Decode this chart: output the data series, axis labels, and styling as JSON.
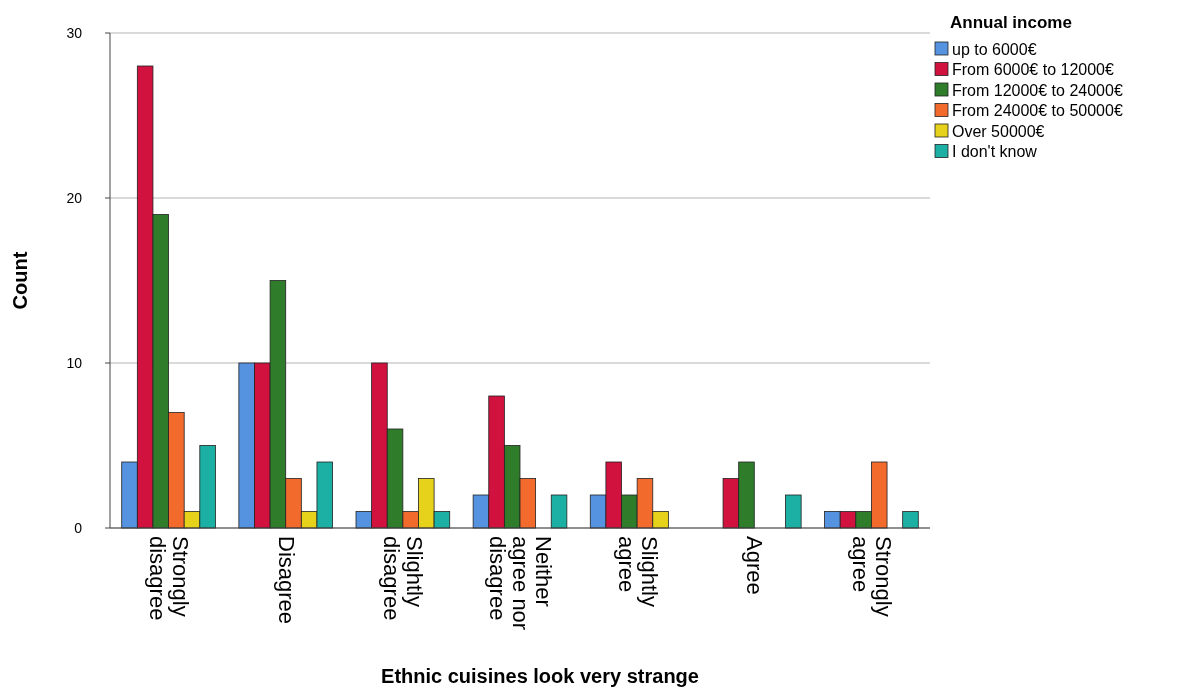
{
  "chart_data": {
    "type": "bar",
    "xlabel": "Ethnic cuisines look very strange",
    "ylabel": "Count",
    "legend_title": "Annual income",
    "legend": "top right",
    "grid": "y",
    "categories": [
      "Strongly disagree",
      "Disagree",
      "Slightly disagree",
      "Neither agree nor disagree",
      "Slightly agree",
      "Agree",
      "Strongly agree"
    ],
    "ylim": [
      0,
      30
    ],
    "yticks": [
      0,
      10,
      20,
      30
    ],
    "series": [
      {
        "name": "up to 6000€",
        "color": "#5592e0",
        "values": [
          4,
          10,
          1,
          2,
          2,
          null,
          1
        ]
      },
      {
        "name": "From 6000€ to 12000€",
        "color": "#d1123f",
        "values": [
          28,
          10,
          10,
          8,
          4,
          3,
          1
        ]
      },
      {
        "name": "From 12000€ to 24000€",
        "color": "#2f7d2a",
        "values": [
          19,
          15,
          6,
          5,
          2,
          4,
          1
        ]
      },
      {
        "name": "From 24000€ to 50000€",
        "color": "#f26b2d",
        "values": [
          7,
          3,
          1,
          3,
          3,
          null,
          4
        ]
      },
      {
        "name": "Over 50000€",
        "color": "#e6d21a",
        "values": [
          1,
          1,
          3,
          null,
          1,
          null,
          null
        ]
      },
      {
        "name": "I don't know",
        "color": "#1bb0a3",
        "values": [
          5,
          4,
          1,
          2,
          null,
          2,
          1
        ]
      }
    ]
  }
}
